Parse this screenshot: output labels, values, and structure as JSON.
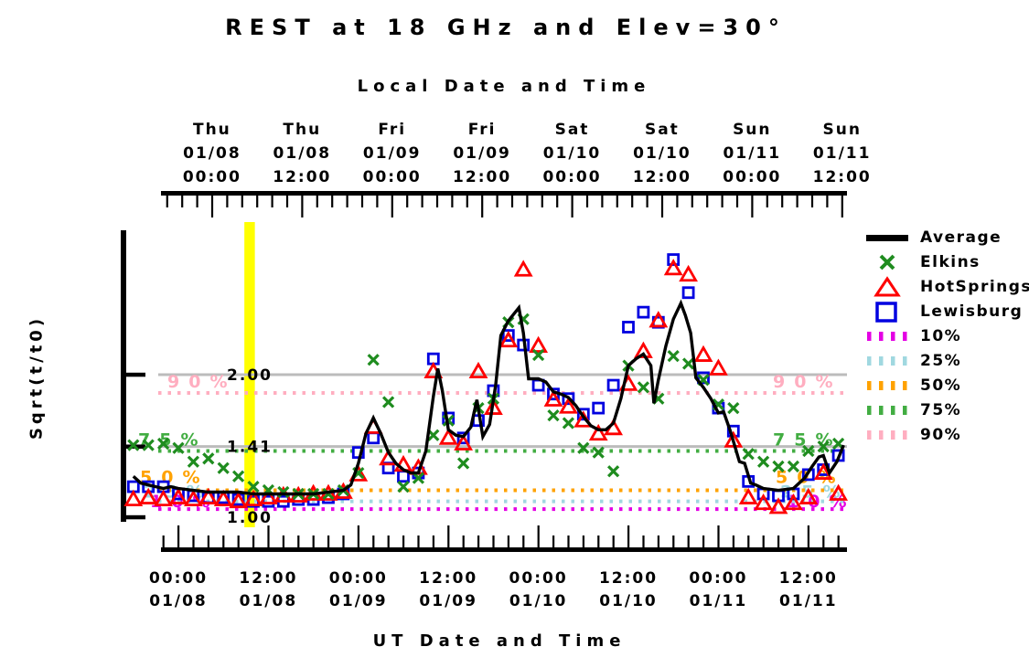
{
  "chart_data": {
    "type": "line",
    "title": "REST at 18 GHz and Elev=30°",
    "y_axis": {
      "label": "Sqrt(t/t0)",
      "scale": "log2 of t where plotted value is sqrt(t/t0)",
      "range_sqrt": [
        1.0,
        4.0
      ],
      "ticks": [
        {
          "value": 2.0,
          "label": "2.00"
        },
        {
          "value": 1.41,
          "label": "1.41"
        },
        {
          "value": 1.0,
          "label": "1.00"
        }
      ]
    },
    "top_axis": {
      "label": "Local Date and Time",
      "tick_labels": [
        {
          "day": "Thu",
          "date": "01/08",
          "time": "00:00"
        },
        {
          "day": "Thu",
          "date": "01/08",
          "time": "12:00"
        },
        {
          "day": "Fri",
          "date": "01/09",
          "time": "00:00"
        },
        {
          "day": "Fri",
          "date": "01/09",
          "time": "12:00"
        },
        {
          "day": "Sat",
          "date": "01/10",
          "time": "00:00"
        },
        {
          "day": "Sat",
          "date": "01/10",
          "time": "12:00"
        },
        {
          "day": "Sun",
          "date": "01/11",
          "time": "00:00"
        },
        {
          "day": "Sun",
          "date": "01/11",
          "time": "12:00"
        }
      ]
    },
    "bottom_axis": {
      "label": "UT Date and Time",
      "tick_labels": [
        {
          "time": "00:00",
          "date": "01/08"
        },
        {
          "time": "12:00",
          "date": "01/08"
        },
        {
          "time": "00:00",
          "date": "01/09"
        },
        {
          "time": "12:00",
          "date": "01/09"
        },
        {
          "time": "00:00",
          "date": "01/10"
        },
        {
          "time": "12:00",
          "date": "01/10"
        },
        {
          "time": "00:00",
          "date": "01/11"
        },
        {
          "time": "12:00",
          "date": "01/11"
        }
      ],
      "minor_tick_hours": 2,
      "major_tick_hours": 12,
      "x_range_hours_ut": [
        -7.3,
        89.5
      ]
    },
    "now_band": {
      "start_hour": 8.8,
      "end_hour": 10.2,
      "color": "#ffff00"
    },
    "reference_lines": {
      "color": "#bcbcbc",
      "values": [
        1.41,
        2.0
      ]
    },
    "percentiles": [
      {
        "label": "10%",
        "value": 1.04,
        "color": "#e400e4"
      },
      {
        "label": "25%",
        "value": 1.08,
        "color": "#a0d8e0"
      },
      {
        "label": "50%",
        "value": 1.14,
        "color": "#ffa200"
      },
      {
        "label": "75%",
        "value": 1.38,
        "color": "#42ad42"
      },
      {
        "label": "90%",
        "value": 1.83,
        "color": "#ffaec0"
      }
    ],
    "series": [
      {
        "name": "Average",
        "type": "line",
        "color": "#000000",
        "points": [
          [
            -6,
            1.22
          ],
          [
            -5,
            1.18
          ],
          [
            -4,
            1.17
          ],
          [
            -3,
            1.16
          ],
          [
            -2,
            1.15
          ],
          [
            -1,
            1.16
          ],
          [
            0,
            1.15
          ],
          [
            2,
            1.14
          ],
          [
            4,
            1.13
          ],
          [
            6,
            1.13
          ],
          [
            8,
            1.13
          ],
          [
            10,
            1.12
          ],
          [
            12,
            1.12
          ],
          [
            14,
            1.12
          ],
          [
            16,
            1.12
          ],
          [
            18,
            1.12
          ],
          [
            20,
            1.13
          ],
          [
            22,
            1.14
          ],
          [
            23,
            1.17
          ],
          [
            24,
            1.3
          ],
          [
            25,
            1.5
          ],
          [
            26,
            1.62
          ],
          [
            27,
            1.5
          ],
          [
            28,
            1.37
          ],
          [
            29,
            1.3
          ],
          [
            30,
            1.26
          ],
          [
            31,
            1.24
          ],
          [
            32,
            1.24
          ],
          [
            33,
            1.38
          ],
          [
            34,
            1.8
          ],
          [
            34.6,
            2.06
          ],
          [
            35.2,
            1.85
          ],
          [
            36,
            1.53
          ],
          [
            37,
            1.49
          ],
          [
            38,
            1.48
          ],
          [
            39,
            1.55
          ],
          [
            39.8,
            1.77
          ],
          [
            40.6,
            1.48
          ],
          [
            41.5,
            1.57
          ],
          [
            42.3,
            1.9
          ],
          [
            43,
            2.42
          ],
          [
            44,
            2.6
          ],
          [
            45.4,
            2.77
          ],
          [
            46,
            2.45
          ],
          [
            46.7,
            1.96
          ],
          [
            48,
            1.96
          ],
          [
            49,
            1.93
          ],
          [
            50,
            1.84
          ],
          [
            51,
            1.82
          ],
          [
            52,
            1.79
          ],
          [
            53,
            1.72
          ],
          [
            54,
            1.63
          ],
          [
            55,
            1.56
          ],
          [
            56,
            1.53
          ],
          [
            57,
            1.53
          ],
          [
            58,
            1.58
          ],
          [
            59,
            1.78
          ],
          [
            60,
            2.09
          ],
          [
            61,
            2.16
          ],
          [
            62,
            2.21
          ],
          [
            63,
            2.09
          ],
          [
            63.4,
            1.74
          ],
          [
            64,
            1.95
          ],
          [
            65,
            2.3
          ],
          [
            66,
            2.62
          ],
          [
            67,
            2.83
          ],
          [
            67.6,
            2.67
          ],
          [
            68.3,
            2.45
          ],
          [
            69,
            1.97
          ],
          [
            70,
            1.88
          ],
          [
            71,
            1.78
          ],
          [
            72,
            1.66
          ],
          [
            72.7,
            1.67
          ],
          [
            73.6,
            1.52
          ],
          [
            74.8,
            1.31
          ],
          [
            75.5,
            1.3
          ],
          [
            76.3,
            1.18
          ],
          [
            77,
            1.17
          ],
          [
            78,
            1.15
          ],
          [
            80,
            1.14
          ],
          [
            82,
            1.15
          ],
          [
            83.5,
            1.21
          ],
          [
            84.5,
            1.28
          ],
          [
            85.4,
            1.34
          ],
          [
            86,
            1.35
          ],
          [
            86.8,
            1.24
          ],
          [
            87.8,
            1.31
          ],
          [
            88.7,
            1.42
          ]
        ]
      },
      {
        "name": "Elkins",
        "type": "scatter",
        "marker": "x",
        "color": "#1f8c1f",
        "start_hour": -6,
        "step_hours": 2,
        "values": [
          1.42,
          1.42,
          1.43,
          1.4,
          1.31,
          1.33,
          1.27,
          1.22,
          1.16,
          1.14,
          1.13,
          1.12,
          1.12,
          1.12,
          1.14,
          1.24,
          2.15,
          1.75,
          1.16,
          1.21,
          1.49,
          1.6,
          1.3,
          1.7,
          1.78,
          2.58,
          2.62,
          2.2,
          1.64,
          1.58,
          1.4,
          1.37,
          1.25,
          2.09,
          1.88,
          1.78,
          2.19,
          2.11,
          1.95,
          1.73,
          1.7,
          1.36,
          1.31,
          1.28,
          1.28,
          1.38,
          1.41,
          1.43
        ]
      },
      {
        "name": "HotSprings",
        "type": "scatter",
        "marker": "triangle",
        "color": "#fe0000",
        "start_hour": -6,
        "step_hours": 2,
        "values": [
          1.09,
          1.1,
          1.09,
          1.1,
          1.09,
          1.1,
          1.09,
          1.08,
          1.09,
          1.1,
          1.11,
          1.11,
          1.12,
          1.12,
          1.13,
          1.23,
          1.55,
          1.33,
          1.29,
          1.27,
          2.03,
          1.47,
          1.43,
          2.03,
          1.7,
          2.36,
          3.33,
          2.3,
          1.77,
          1.71,
          1.6,
          1.5,
          1.54,
          1.91,
          2.24,
          2.6,
          3.35,
          3.25,
          2.2,
          2.06,
          1.45,
          1.1,
          1.07,
          1.05,
          1.07,
          1.1,
          1.24,
          1.12
        ]
      },
      {
        "name": "Lewisburg",
        "type": "scatter",
        "marker": "square",
        "color": "#0000e0",
        "start_hour": -6,
        "step_hours": 2,
        "values": [
          1.16,
          1.16,
          1.16,
          1.12,
          1.11,
          1.1,
          1.1,
          1.09,
          1.08,
          1.08,
          1.08,
          1.09,
          1.09,
          1.1,
          1.12,
          1.37,
          1.47,
          1.27,
          1.22,
          1.24,
          2.16,
          1.62,
          1.47,
          1.6,
          1.85,
          2.42,
          2.31,
          1.9,
          1.82,
          1.78,
          1.65,
          1.7,
          1.9,
          2.52,
          2.71,
          2.58,
          3.5,
          2.98,
          1.97,
          1.7,
          1.52,
          1.19,
          1.12,
          1.11,
          1.12,
          1.23,
          1.26,
          1.35
        ]
      }
    ],
    "legend": {
      "entries": [
        "Average",
        "Elkins",
        "HotSprings",
        "Lewisburg",
        "10%",
        "25%",
        "50%",
        "75%",
        "90%"
      ],
      "position": "right"
    }
  }
}
